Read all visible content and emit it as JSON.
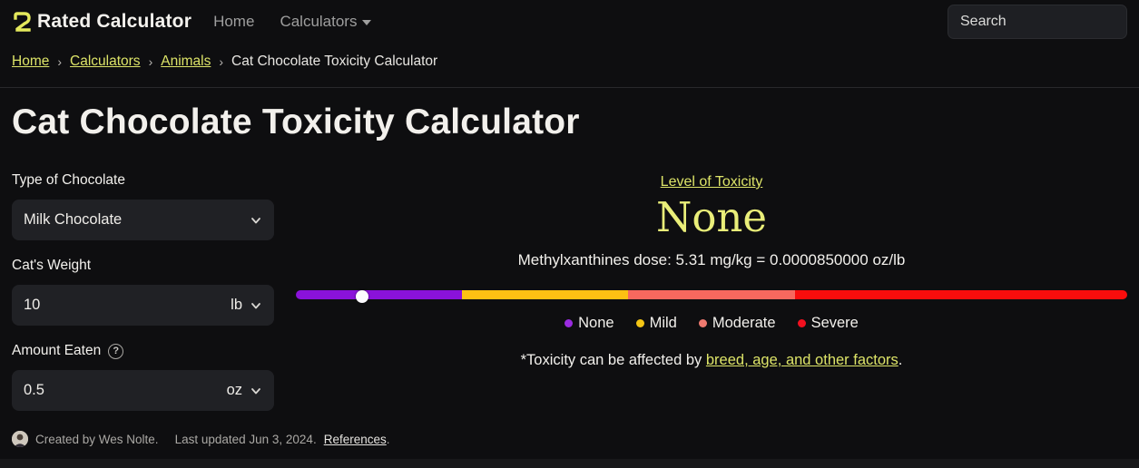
{
  "colors": {
    "accent_yellow": "#dde468",
    "accent_yellow_big": "#e9ee79",
    "logo_yellow": "#e4e95c",
    "slider_purple": "#8a12da",
    "slider_yellow": "#fdc113",
    "slider_salmon": "#f7685e",
    "slider_red": "#f90d0c"
  },
  "navbar": {
    "brand": "Rated Calculator",
    "links": [
      {
        "label": "Home",
        "dropdown": false
      },
      {
        "label": "Calculators",
        "dropdown": true
      }
    ],
    "search_placeholder": "Search"
  },
  "breadcrumb": {
    "separator": "›",
    "items": [
      {
        "label": "Home"
      },
      {
        "label": "Calculators"
      },
      {
        "label": "Animals"
      },
      {
        "label": "Cat Chocolate Toxicity Calculator"
      }
    ]
  },
  "page": {
    "title": "Cat Chocolate Toxicity Calculator"
  },
  "form": {
    "chocolate": {
      "label": "Type of Chocolate",
      "value": "Milk Chocolate"
    },
    "weight": {
      "label": "Cat's Weight",
      "value": "10",
      "unit": "lb"
    },
    "amount": {
      "label": "Amount Eaten",
      "value": "0.5",
      "unit": "oz",
      "help_glyph": "?"
    }
  },
  "result": {
    "heading_link": "Level of Toxicity",
    "level": "None",
    "dose_text": "Methylxanthines dose: 5.31 mg/kg = 0.0000850000 oz/lb",
    "slider": {
      "thumb_percent": 8,
      "segments": [
        {
          "label": "None",
          "color": "#8a12da",
          "width_percent": 20
        },
        {
          "label": "Mild",
          "color": "#fdc113",
          "width_percent": 20
        },
        {
          "label": "Moderate",
          "color": "#f7685e",
          "width_percent": 20
        },
        {
          "label": "Severe",
          "color": "#f90d0c",
          "width_percent": 40
        }
      ]
    },
    "legend": [
      {
        "label": "None",
        "color": "#9a2be0"
      },
      {
        "label": "Mild",
        "color": "#f3c515"
      },
      {
        "label": "Moderate",
        "color": "#ef7a70"
      },
      {
        "label": "Severe",
        "color": "#f2101f"
      }
    ],
    "footnote_prefix": "*Toxicity can be affected by ",
    "footnote_link": "breed, age, and other factors",
    "footnote_suffix": "."
  },
  "footer": {
    "created": "Created by Wes Nolte.",
    "updated": "Last updated Jun 3, 2024.",
    "references_label": "References",
    "period": "."
  }
}
